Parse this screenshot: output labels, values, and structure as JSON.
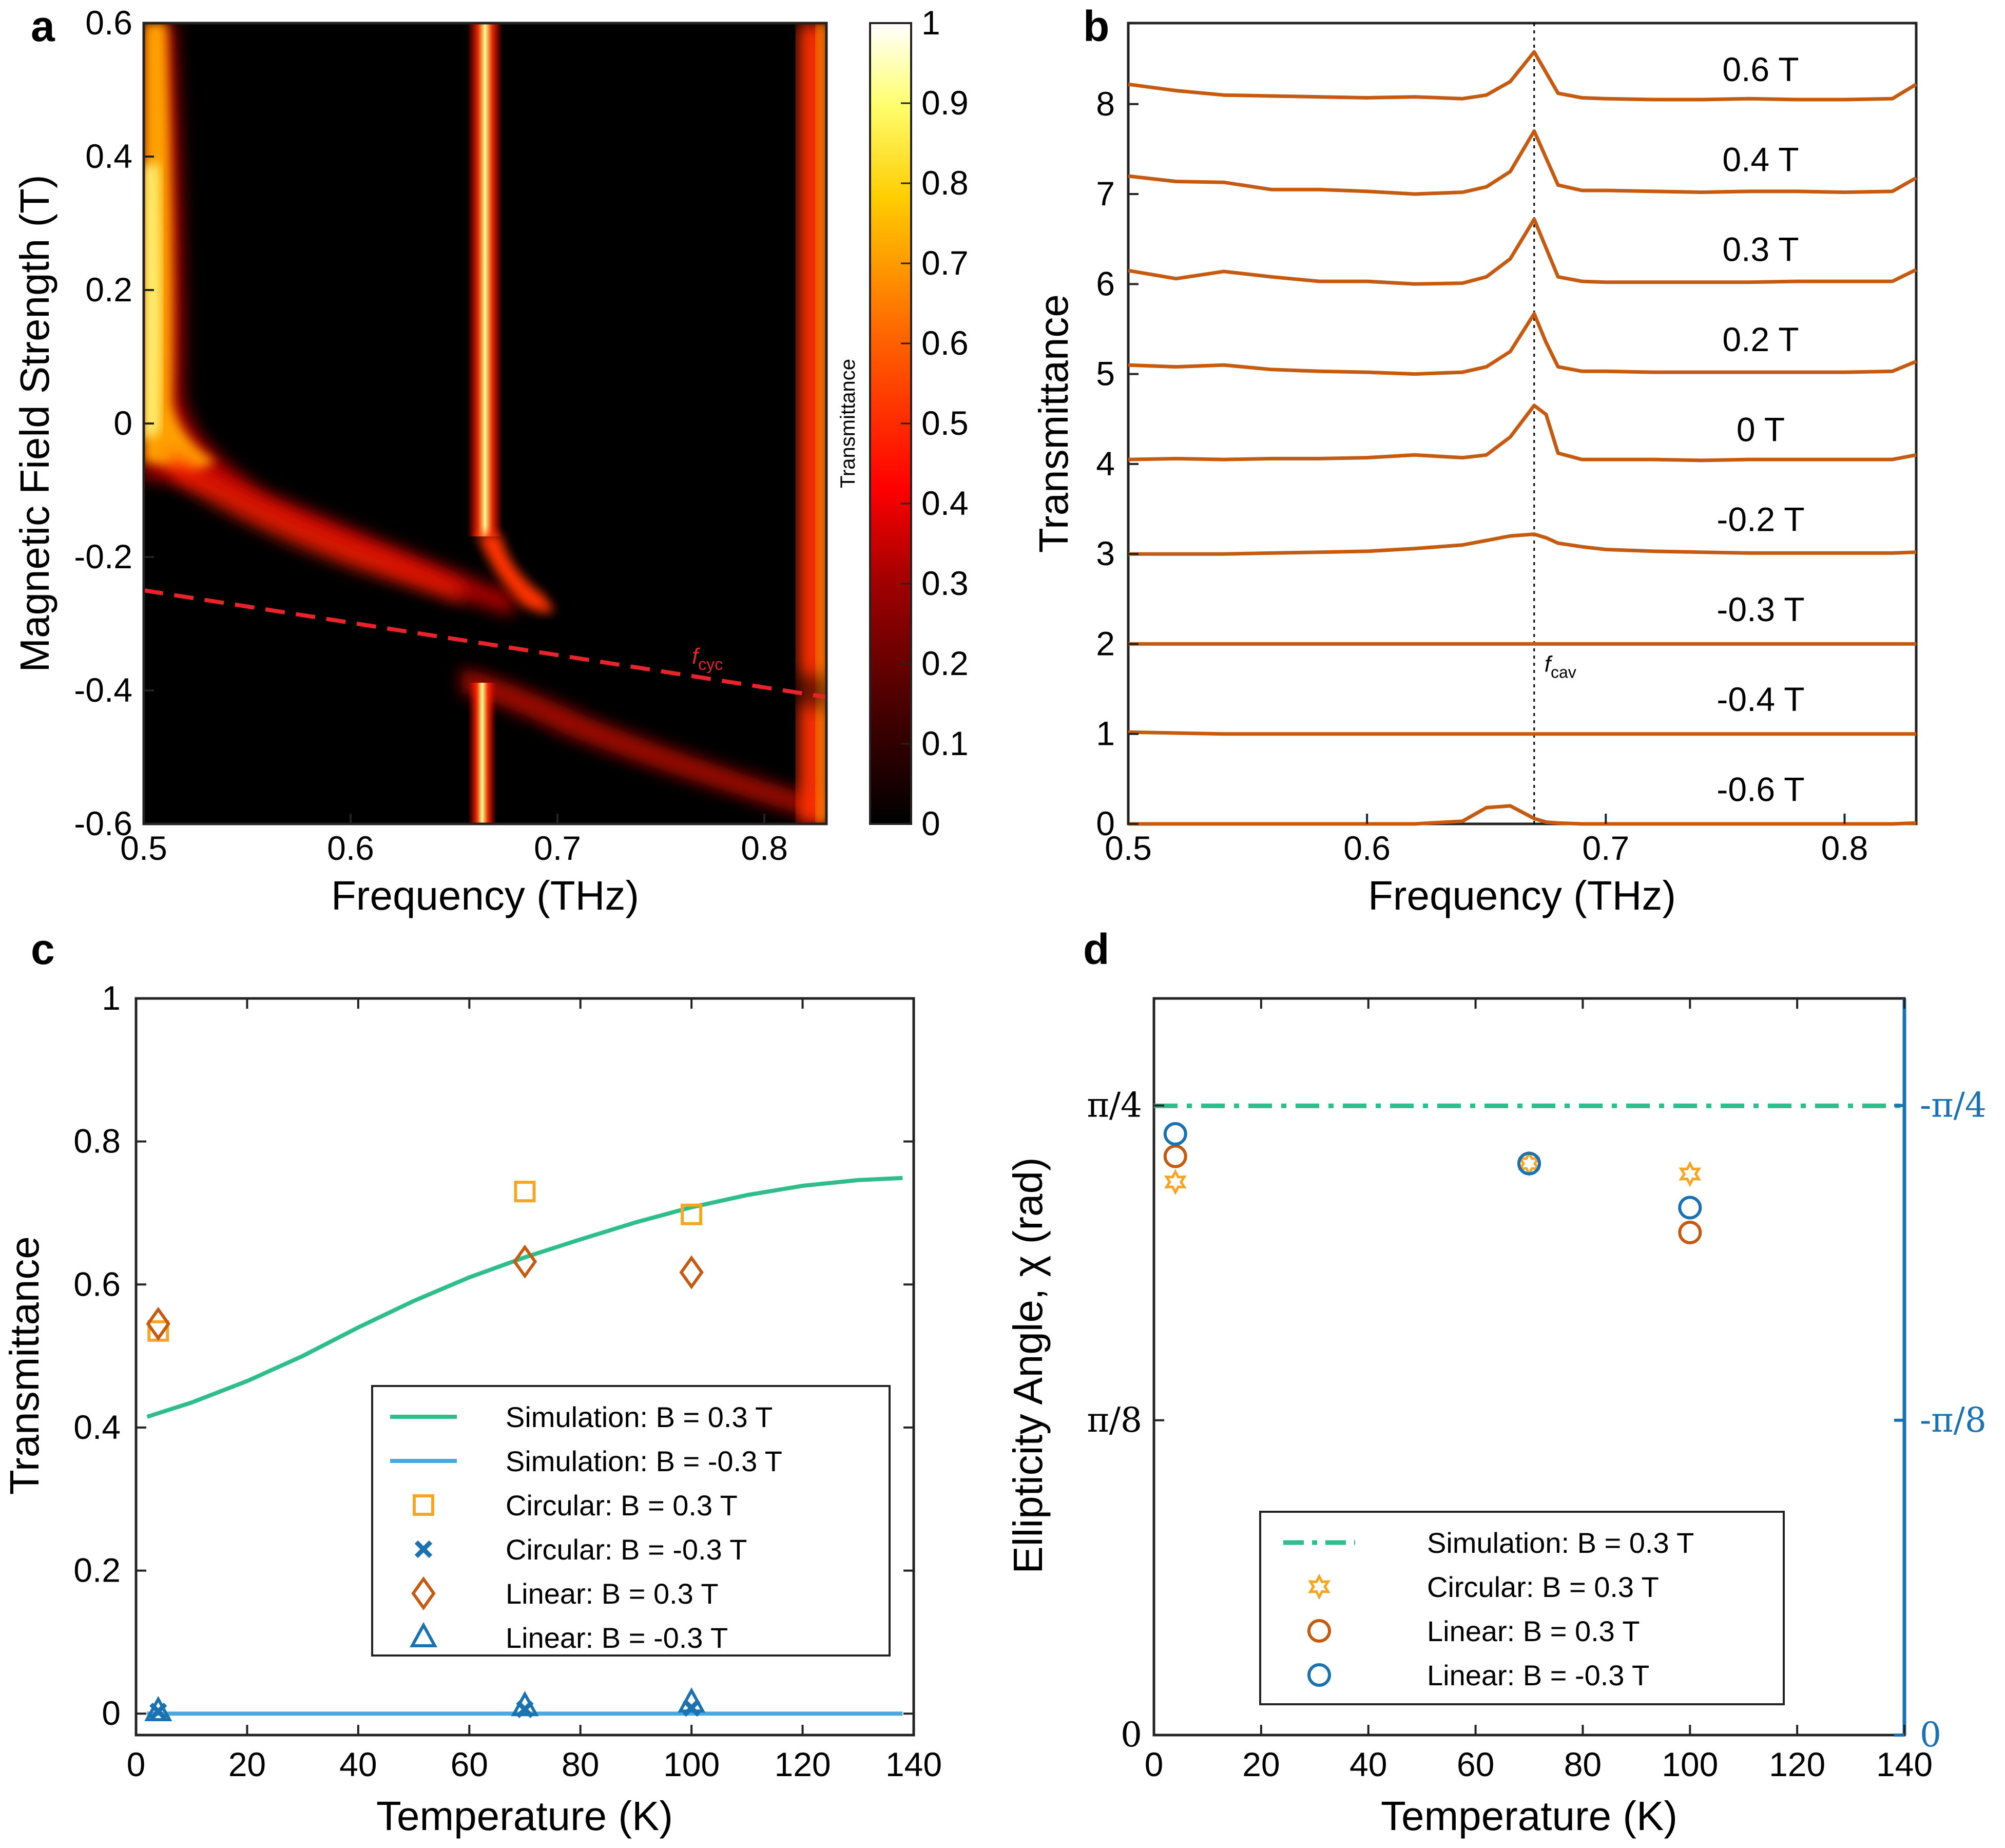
{
  "panel_labels": [
    "a",
    "b",
    "c",
    "d"
  ],
  "colors": {
    "orange": "#C55A11",
    "yellow": "#F5A623",
    "green": "#2DBE8C",
    "lightblue": "#4AA8DF",
    "darkblue": "#1A72B0",
    "red_dash": "#E8232A"
  },
  "chart_data": [
    {
      "panel": "a",
      "type": "heatmap",
      "xlabel": "Frequency (THz)",
      "ylabel": "Magnetic Field Strength (T)",
      "xlim": [
        0.5,
        0.83
      ],
      "ylim": [
        -0.6,
        0.6
      ],
      "xticks": [
        "0.5",
        "0.6",
        "0.7",
        "0.8"
      ],
      "yticks": [
        "-0.6",
        "-0.4",
        "-0.2",
        "0",
        "0.2",
        "0.4",
        "0.6"
      ],
      "colorbar_label": "Transmittance",
      "colorbar_lim": [
        0,
        1
      ],
      "colorbar_ticks": [
        "0",
        "0.1",
        "0.2",
        "0.3",
        "0.4",
        "0.5",
        "0.6",
        "0.7",
        "0.8",
        "0.9",
        "1"
      ],
      "cavity_frequency": 0.66,
      "annotation": {
        "text": "f",
        "sub": "cyc"
      },
      "cyclotron_line": {
        "x": [
          0.5,
          0.83
        ],
        "y": [
          -0.25,
          -0.41
        ]
      }
    },
    {
      "panel": "b",
      "type": "line",
      "xlabel": "Frequency (THz)",
      "ylabel": "Transmittance",
      "xlim": [
        0.5,
        0.83
      ],
      "ylim": [
        0,
        8.9
      ],
      "xticks": [
        "0.5",
        "0.6",
        "0.7",
        "0.8"
      ],
      "yticks": [
        "0",
        "1",
        "2",
        "3",
        "4",
        "5",
        "6",
        "7",
        "8"
      ],
      "vline_x": 0.67,
      "vline_label": {
        "text": "f",
        "sub": "cav"
      },
      "x": [
        0.5,
        0.52,
        0.54,
        0.56,
        0.58,
        0.6,
        0.62,
        0.64,
        0.65,
        0.66,
        0.67,
        0.675,
        0.68,
        0.69,
        0.7,
        0.72,
        0.74,
        0.76,
        0.78,
        0.8,
        0.82,
        0.83
      ],
      "series": [
        {
          "name": "0.6 T",
          "offset": 8,
          "values": [
            0.22,
            0.15,
            0.1,
            0.09,
            0.08,
            0.07,
            0.08,
            0.06,
            0.1,
            0.25,
            0.58,
            0.35,
            0.12,
            0.07,
            0.06,
            0.05,
            0.05,
            0.06,
            0.05,
            0.05,
            0.06,
            0.22
          ]
        },
        {
          "name": "0.4 T",
          "offset": 7,
          "values": [
            0.2,
            0.14,
            0.13,
            0.05,
            0.05,
            0.03,
            0.0,
            0.02,
            0.08,
            0.25,
            0.7,
            0.4,
            0.1,
            0.04,
            0.04,
            0.03,
            0.02,
            0.03,
            0.03,
            0.02,
            0.03,
            0.18
          ]
        },
        {
          "name": "0.3 T",
          "offset": 6,
          "values": [
            0.15,
            0.06,
            0.14,
            0.08,
            0.03,
            0.03,
            0.0,
            0.01,
            0.08,
            0.28,
            0.72,
            0.4,
            0.08,
            0.03,
            0.02,
            0.02,
            0.02,
            0.02,
            0.03,
            0.03,
            0.03,
            0.16
          ]
        },
        {
          "name": "0.2 T",
          "offset": 5,
          "values": [
            0.1,
            0.08,
            0.1,
            0.05,
            0.03,
            0.02,
            0.0,
            0.02,
            0.08,
            0.25,
            0.67,
            0.35,
            0.08,
            0.03,
            0.03,
            0.02,
            0.02,
            0.02,
            0.02,
            0.02,
            0.03,
            0.14
          ]
        },
        {
          "name": "0 T",
          "offset": 4,
          "values": [
            0.05,
            0.06,
            0.05,
            0.06,
            0.06,
            0.07,
            0.1,
            0.07,
            0.1,
            0.3,
            0.65,
            0.55,
            0.12,
            0.05,
            0.05,
            0.05,
            0.04,
            0.05,
            0.05,
            0.05,
            0.05,
            0.1
          ]
        },
        {
          "name": "-0.2 T",
          "offset": 3,
          "values": [
            0.0,
            0.0,
            0.0,
            0.01,
            0.02,
            0.03,
            0.06,
            0.1,
            0.15,
            0.2,
            0.22,
            0.18,
            0.12,
            0.08,
            0.05,
            0.03,
            0.02,
            0.01,
            0.01,
            0.01,
            0.01,
            0.02
          ]
        },
        {
          "name": "-0.3 T",
          "offset": 2,
          "values": [
            0.0,
            0.0,
            0.0,
            0.0,
            0.0,
            0.0,
            0.0,
            0.0,
            0.0,
            0.0,
            0.0,
            0.0,
            0.0,
            0.0,
            0.0,
            0.0,
            0.0,
            0.0,
            0.0,
            0.0,
            0.0,
            0.0
          ]
        },
        {
          "name": "-0.4 T",
          "offset": 1,
          "values": [
            0.02,
            0.01,
            0.0,
            0.0,
            0.0,
            0.0,
            0.0,
            0.0,
            0.0,
            0.0,
            0.0,
            0.0,
            0.0,
            0.0,
            0.0,
            0.0,
            0.0,
            0.0,
            0.0,
            0.0,
            0.0,
            0.0
          ]
        },
        {
          "name": "-0.6 T",
          "offset": 0,
          "values": [
            0.0,
            0.0,
            0.0,
            0.0,
            0.0,
            0.0,
            0.0,
            0.03,
            0.18,
            0.2,
            0.06,
            0.02,
            0.01,
            0.0,
            0.0,
            0.0,
            0.0,
            0.0,
            0.0,
            0.0,
            0.0,
            0.01
          ]
        }
      ]
    },
    {
      "panel": "c",
      "type": "scatter",
      "xlabel": "Temperature (K)",
      "ylabel": "Transmittance",
      "xlim": [
        0,
        140
      ],
      "ylim": [
        -0.03,
        1
      ],
      "xticks": [
        "0",
        "20",
        "40",
        "60",
        "80",
        "100",
        "120",
        "140"
      ],
      "yticks": [
        "0",
        "0.2",
        "0.4",
        "0.6",
        "0.8",
        "1"
      ],
      "series": [
        {
          "name": "Simulation: B = 0.3 T",
          "kind": "line",
          "x": [
            2,
            10,
            20,
            30,
            40,
            50,
            60,
            70,
            80,
            90,
            100,
            110,
            120,
            130,
            138
          ],
          "y": [
            0.415,
            0.435,
            0.465,
            0.5,
            0.54,
            0.577,
            0.61,
            0.638,
            0.663,
            0.687,
            0.708,
            0.725,
            0.738,
            0.746,
            0.749
          ]
        },
        {
          "name": "Simulation: B = -0.3 T",
          "kind": "line",
          "x": [
            2,
            138
          ],
          "y": [
            0.0,
            0.0
          ]
        },
        {
          "name": "Circular: B = 0.3 T",
          "kind": "square",
          "x": [
            4,
            70,
            100
          ],
          "y": [
            0.535,
            0.73,
            0.698
          ]
        },
        {
          "name": "Circular: B = -0.3 T",
          "kind": "x",
          "x": [
            4,
            70,
            100
          ],
          "y": [
            0.003,
            0.006,
            0.008
          ]
        },
        {
          "name": "Linear: B = 0.3 T",
          "kind": "diamond",
          "x": [
            4,
            70,
            100
          ],
          "y": [
            0.545,
            0.632,
            0.617
          ]
        },
        {
          "name": "Linear: B = -0.3 T",
          "kind": "triangle",
          "x": [
            4,
            70,
            100
          ],
          "y": [
            0.003,
            0.01,
            0.015
          ]
        }
      ]
    },
    {
      "panel": "d",
      "type": "scatter",
      "xlabel": "Temperature (K)",
      "ylabel": "Ellipticity Angle, χ (rad)",
      "xlim": [
        0,
        140
      ],
      "ylim": [
        0,
        0.919
      ],
      "xticks": [
        "0",
        "20",
        "40",
        "60",
        "80",
        "100",
        "120",
        "140"
      ],
      "yticks_left": [
        "0",
        "π/8",
        "π/4"
      ],
      "yticks_right": [
        "0",
        "-π/8",
        "-π/4"
      ],
      "series": [
        {
          "name": "Simulation: B = 0.3 T",
          "kind": "dashdot",
          "x": [
            0,
            140
          ],
          "y": [
            0.785,
            0.785
          ]
        },
        {
          "name": "Circular: B = 0.3 T",
          "kind": "star",
          "x": [
            4,
            70,
            100
          ],
          "y": [
            0.69,
            0.713,
            0.7
          ]
        },
        {
          "name": "Linear: B = 0.3 T",
          "kind": "circle",
          "x": [
            4,
            70,
            100
          ],
          "y": [
            0.722,
            0.713,
            0.627
          ]
        },
        {
          "name": "Linear: B = -0.3 T",
          "kind": "circle",
          "x": [
            4,
            70,
            100
          ],
          "y": [
            0.75,
            0.713,
            0.658
          ]
        }
      ]
    }
  ]
}
